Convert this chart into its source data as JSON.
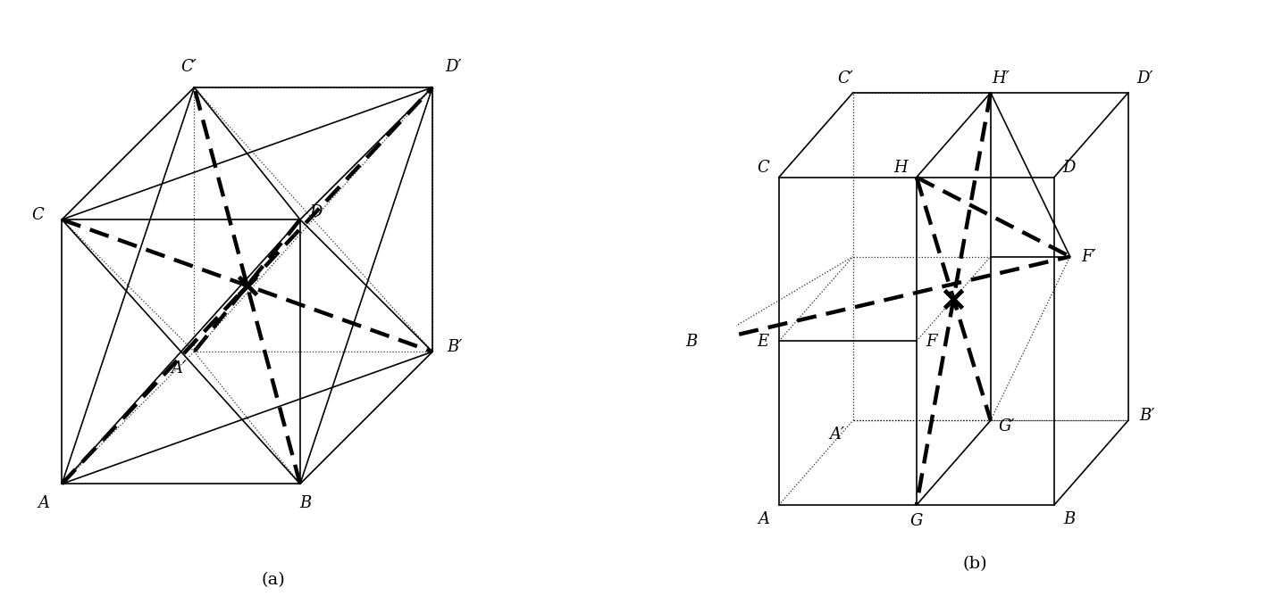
{
  "fig_width": 16.62,
  "fig_height": 6.89,
  "background": "#ffffff"
}
